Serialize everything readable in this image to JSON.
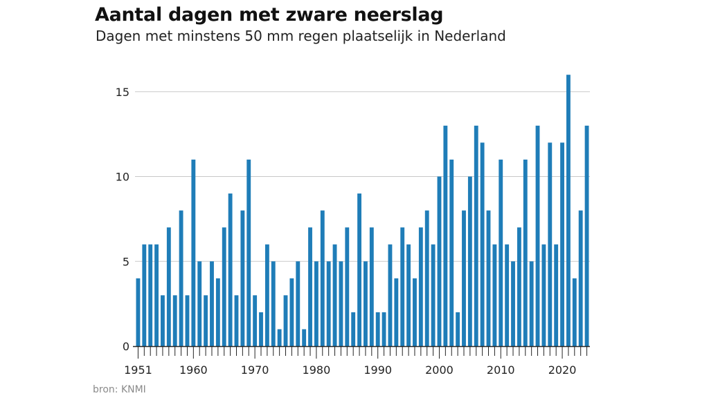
{
  "title": "Aantal dagen met zware neerslag",
  "subtitle": "Dagen met minstens 50 mm regen plaatselijk in Nederland",
  "source": "bron: KNMI",
  "colors": {
    "bar": "#1f7db8",
    "grid": "#c8c8c8",
    "axis": "#222222",
    "tick_label": "#222222"
  },
  "chart_data": {
    "type": "bar",
    "title": "Aantal dagen met zware neerslag",
    "subtitle": "Dagen met minstens 50 mm regen plaatselijk in Nederland",
    "xlabel": "",
    "ylabel": "",
    "ylim": [
      0,
      16
    ],
    "yticks": [
      0,
      5,
      10,
      15
    ],
    "xtick_labels": [
      "1951",
      "1960",
      "1970",
      "1980",
      "1990",
      "2000",
      "2010",
      "2020"
    ],
    "grid": "horizontal",
    "categories": [
      1951,
      1952,
      1953,
      1954,
      1955,
      1956,
      1957,
      1958,
      1959,
      1960,
      1961,
      1962,
      1963,
      1964,
      1965,
      1966,
      1967,
      1968,
      1969,
      1970,
      1971,
      1972,
      1973,
      1974,
      1975,
      1976,
      1977,
      1978,
      1979,
      1980,
      1981,
      1982,
      1983,
      1984,
      1985,
      1986,
      1987,
      1988,
      1989,
      1990,
      1991,
      1992,
      1993,
      1994,
      1995,
      1996,
      1997,
      1998,
      1999,
      2000,
      2001,
      2002,
      2003,
      2004,
      2005,
      2006,
      2007,
      2008,
      2009,
      2010,
      2011,
      2012,
      2013,
      2014,
      2015,
      2016,
      2017,
      2018,
      2019,
      2020,
      2021,
      2022,
      2023,
      2024
    ],
    "values": [
      4,
      6,
      6,
      6,
      3,
      7,
      3,
      8,
      3,
      11,
      5,
      3,
      5,
      4,
      7,
      9,
      3,
      8,
      11,
      3,
      2,
      6,
      5,
      1,
      3,
      4,
      5,
      1,
      7,
      5,
      8,
      5,
      6,
      5,
      7,
      2,
      9,
      5,
      7,
      2,
      2,
      6,
      4,
      7,
      6,
      4,
      7,
      8,
      6,
      10,
      13,
      11,
      2,
      8,
      10,
      13,
      12,
      8,
      6,
      11,
      6,
      5,
      7,
      11,
      5,
      13,
      6,
      12,
      6,
      12,
      16,
      4,
      8,
      13
    ]
  }
}
